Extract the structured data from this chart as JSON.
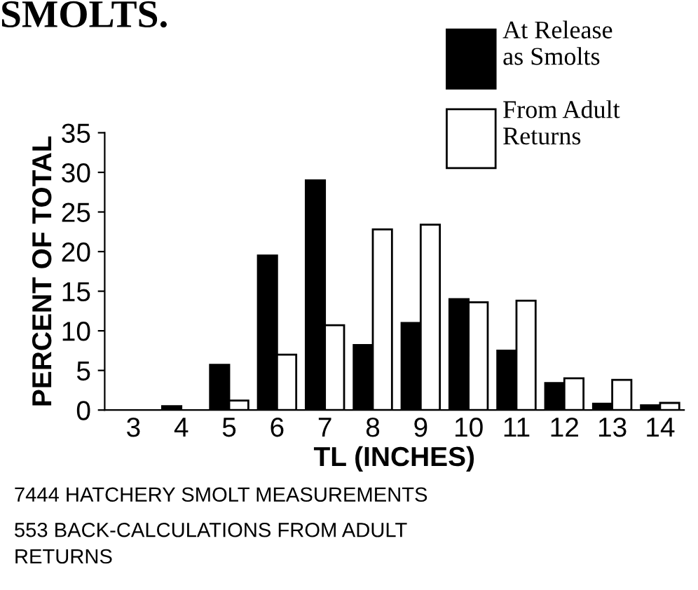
{
  "chart_data": {
    "type": "bar",
    "title": "SMOLTS.",
    "xlabel": "TL (INCHES)",
    "ylabel": "PERCENT OF TOTAL",
    "categories": [
      "3",
      "4",
      "5",
      "6",
      "7",
      "8",
      "9",
      "10",
      "11",
      "12",
      "13",
      "14"
    ],
    "series": [
      {
        "name": "At Release\nas Smolts",
        "color": "#000000",
        "values": [
          null,
          0.5,
          5.7,
          19.5,
          29,
          8.2,
          11,
          14,
          7.5,
          3.4,
          0.8,
          0.6
        ]
      },
      {
        "name": "From Adult\nReturns",
        "color": "#ffffff",
        "values": [
          null,
          null,
          1.2,
          7,
          10.7,
          22.8,
          23.4,
          13.6,
          13.8,
          4,
          3.8,
          0.9
        ]
      }
    ],
    "ylim": [
      0,
      35
    ],
    "yticks": [
      0,
      5,
      10,
      15,
      20,
      25,
      30,
      35
    ],
    "grid": false,
    "legend": "top right",
    "annotations": [
      "7444 HATCHERY SMOLT MEASUREMENTS",
      "553 BACK-CALCULATIONS FROM ADULT\nRETURNS"
    ]
  }
}
